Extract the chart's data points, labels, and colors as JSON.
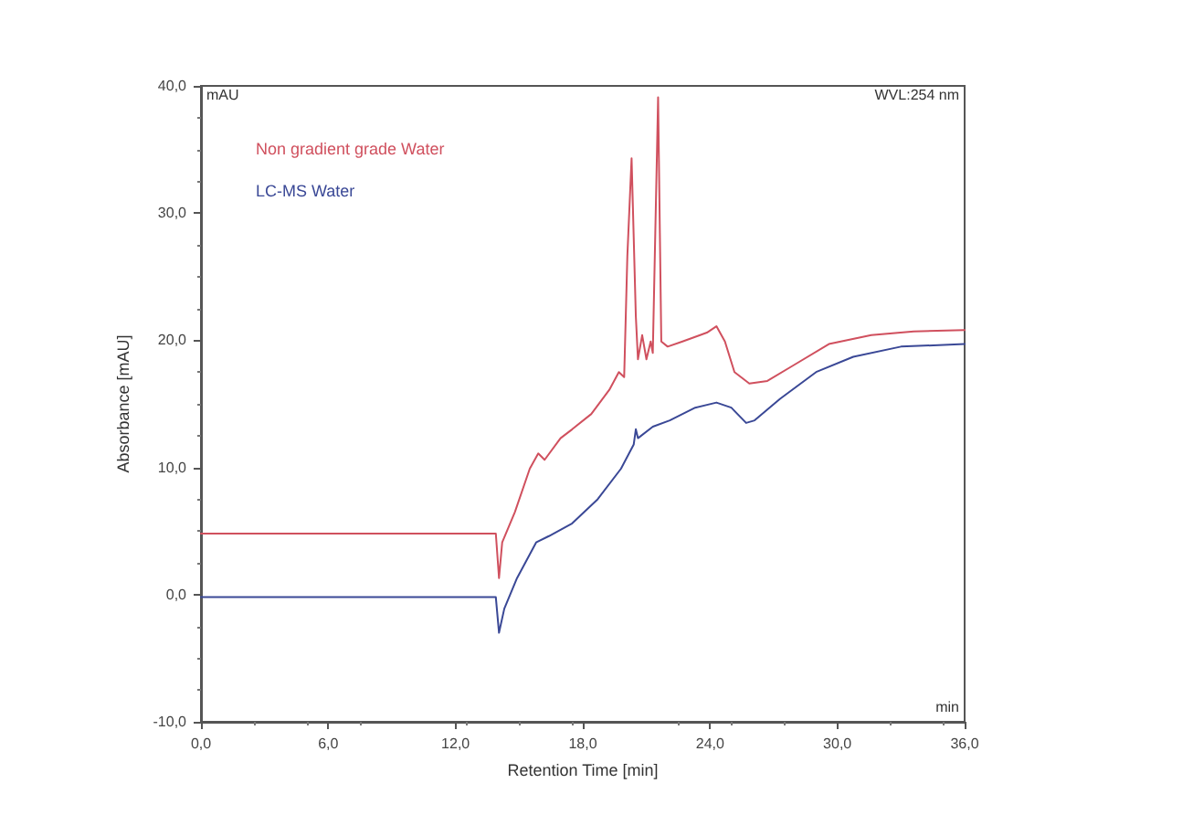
{
  "chart_data": {
    "type": "line",
    "xlabel": "Retention Time [min]",
    "ylabel": "Absorbance [mAU]",
    "annotations": [
      "mAU",
      "WVL:254 nm",
      "min"
    ],
    "xlim": [
      0,
      36
    ],
    "xticks": [
      {
        "value": 0,
        "label": "0,0"
      },
      {
        "value": 6,
        "label": "6,0"
      },
      {
        "value": 12,
        "label": "12,0"
      },
      {
        "value": 18,
        "label": "18,0"
      },
      {
        "value": 24,
        "label": "24,0"
      },
      {
        "value": 30,
        "label": "30,0"
      },
      {
        "value": 36,
        "label": "36,0"
      }
    ],
    "ylim": [
      -10,
      40
    ],
    "yticks": [
      {
        "value": -10,
        "label": "-10,0"
      },
      {
        "value": 0,
        "label": "0,0"
      },
      {
        "value": 10,
        "label": "10,0"
      },
      {
        "value": 20,
        "label": "20,0"
      },
      {
        "value": 30,
        "label": "30,0"
      },
      {
        "value": 40,
        "label": "40,0"
      }
    ],
    "grid": false,
    "legend": "top left",
    "marker": "none",
    "line_style": "solid",
    "series": [
      {
        "name": "Non gradient grade Water",
        "color": "#d0505e",
        "x": [
          0,
          13.9,
          14.05,
          14.2,
          14.8,
          15.5,
          15.9,
          16.2,
          16.95,
          17.5,
          18.4,
          19.25,
          19.7,
          19.95,
          20.1,
          20.3,
          20.5,
          20.6,
          20.8,
          21.0,
          21.2,
          21.3,
          21.55,
          21.7,
          22.0,
          22.7,
          23.85,
          24.3,
          24.7,
          25.15,
          25.85,
          26.7,
          27.9,
          29.6,
          31.6,
          33.6,
          36.0
        ],
        "values": [
          4.8,
          4.8,
          1.3,
          4.1,
          6.5,
          9.9,
          11.1,
          10.6,
          12.3,
          13.0,
          14.2,
          16.1,
          17.5,
          17.1,
          26.6,
          34.3,
          21.9,
          18.5,
          20.4,
          18.5,
          19.9,
          19.0,
          39.1,
          19.9,
          19.5,
          19.9,
          20.6,
          21.1,
          19.9,
          17.5,
          16.6,
          16.8,
          18.0,
          19.7,
          20.4,
          20.7,
          20.8
        ]
      },
      {
        "name": "LC-MS Water",
        "color": "#3a4896",
        "x": [
          0,
          13.9,
          14.05,
          14.3,
          14.9,
          15.8,
          16.4,
          17.5,
          18.7,
          19.8,
          20.4,
          20.5,
          20.6,
          21.3,
          22.1,
          23.3,
          24.3,
          25.0,
          25.7,
          26.1,
          27.3,
          29.0,
          30.75,
          33.0,
          36.0
        ],
        "values": [
          -0.2,
          -0.2,
          -3.0,
          -1.1,
          1.3,
          4.1,
          4.6,
          5.6,
          7.5,
          9.9,
          11.8,
          13.0,
          12.3,
          13.2,
          13.7,
          14.7,
          15.1,
          14.7,
          13.5,
          13.7,
          15.4,
          17.5,
          18.7,
          19.5,
          19.7
        ]
      }
    ]
  }
}
